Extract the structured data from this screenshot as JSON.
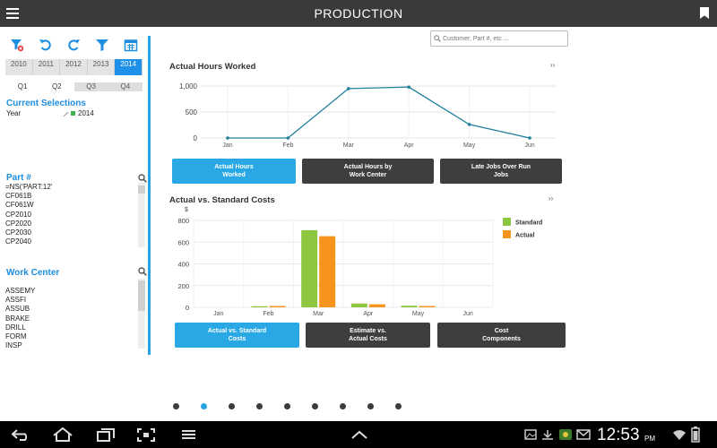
{
  "header": {
    "title": "PRODUCTION",
    "menu_icon": "menu-icon",
    "bookmark_icon": "bookmark-icon"
  },
  "toolbar": {
    "icons": [
      "clear-filter-icon",
      "undo-icon",
      "redo-icon",
      "filter-icon",
      "calendar-icon"
    ]
  },
  "filters": {
    "years": [
      "2010",
      "2011",
      "2012",
      "2013",
      "2014"
    ],
    "selected_year": "2014",
    "quarters": [
      "Q1",
      "Q2",
      "Q3",
      "Q4"
    ]
  },
  "current_selections": {
    "title": "Current Selections",
    "field": "Year",
    "value": "2014"
  },
  "part_list": {
    "title": "Part #",
    "items": [
      "=NS('PART:12'",
      "CF061B",
      "CF061W",
      "CP2010",
      "CP2020",
      "CP2030",
      "CP2040"
    ]
  },
  "work_center_list": {
    "title": "Work Center",
    "items": [
      "ASSEMY",
      "ASSFI",
      "ASSUB",
      "BRAKE",
      "DRILL",
      "FORM",
      "INSP"
    ]
  },
  "search": {
    "placeholder": "Customer, Part #, etc ..."
  },
  "chart1_tabs": [
    {
      "label": "Actual Hours Worked",
      "active": true
    },
    {
      "label": "Actual Hours by Work Center",
      "active": false
    },
    {
      "label": "Late Jobs Over Run Jobs",
      "active": false
    }
  ],
  "chart2_tabs": [
    {
      "label": "Actual vs. Standard Costs",
      "active": true
    },
    {
      "label": "Estimate vs. Actual Costs",
      "active": false
    },
    {
      "label": "Cost Components",
      "active": false
    }
  ],
  "expand_label": "››",
  "chart_data": [
    {
      "type": "line",
      "title": "Actual Hours Worked",
      "categories": [
        "Jan",
        "Feb",
        "Mar",
        "Apr",
        "May",
        "Jun"
      ],
      "values": [
        0,
        0,
        950,
        980,
        260,
        0
      ],
      "ylim": [
        0,
        1000
      ],
      "yticks": [
        "0",
        "500",
        "1,000"
      ],
      "ytick_values": [
        0,
        500,
        1000
      ],
      "color": "#1f7f9c",
      "grid": true
    },
    {
      "type": "bar",
      "title": "Actual vs. Standard Costs",
      "ylabel": "$",
      "categories": [
        "Jan",
        "Feb",
        "Mar",
        "Apr",
        "May",
        "Jun"
      ],
      "series": [
        {
          "name": "Standard",
          "values": [
            0,
            10,
            710,
            35,
            15,
            0
          ],
          "color": "#8dc63f"
        },
        {
          "name": "Actual",
          "values": [
            0,
            12,
            655,
            28,
            12,
            0
          ],
          "color": "#f7941d"
        }
      ],
      "ylim": [
        0,
        800
      ],
      "yticks": [
        "0",
        "200",
        "400",
        "600",
        "800"
      ],
      "ytick_values": [
        0,
        200,
        400,
        600,
        800
      ],
      "legend": "right",
      "grid": true
    }
  ],
  "pager": {
    "count": 9,
    "active_index": 1
  },
  "status_bar": {
    "time": "12:53",
    "ampm": "PM"
  },
  "colors": {
    "accent": "#29a3e0",
    "header": "#3a3a3a",
    "dark_button": "#3e3e3e"
  }
}
